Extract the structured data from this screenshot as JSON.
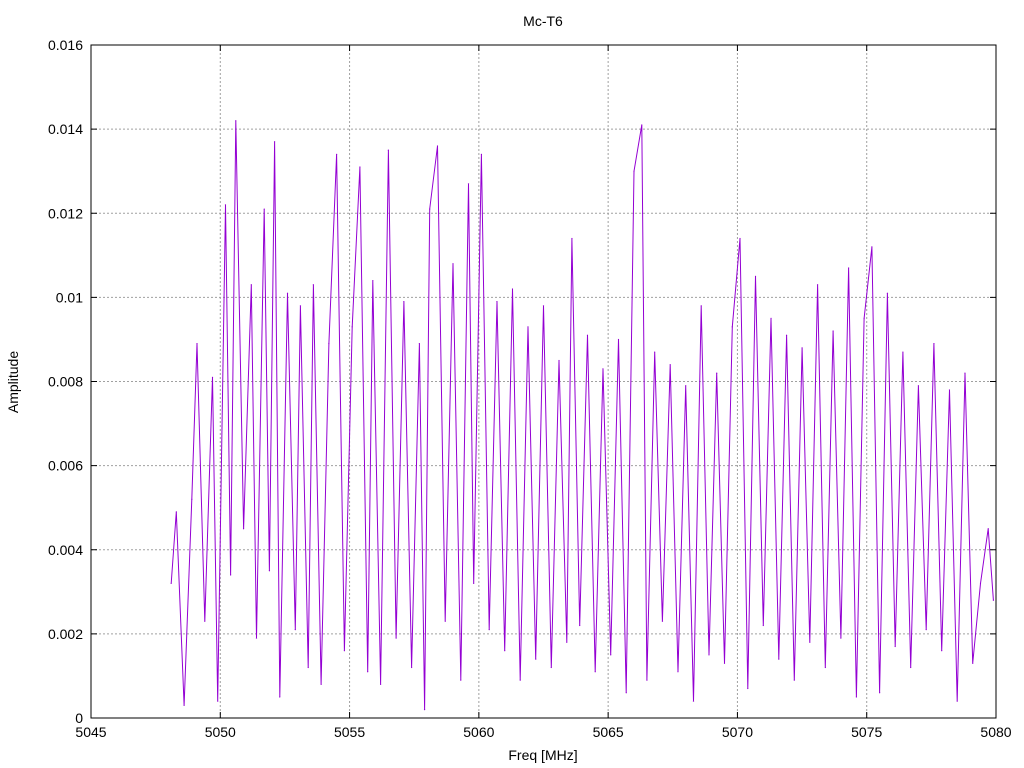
{
  "chart_data": {
    "type": "line",
    "title": "Mc-T6",
    "xlabel": "Freq [MHz]",
    "ylabel": "Amplitude",
    "xlim": [
      5045,
      5080
    ],
    "ylim": [
      0,
      0.016
    ],
    "x_ticks": [
      5045,
      5050,
      5055,
      5060,
      5065,
      5070,
      5075,
      5080
    ],
    "x_tick_labels": [
      "5045",
      "5050",
      "5055",
      "5060",
      "5065",
      "5070",
      "5075",
      "5080"
    ],
    "y_ticks": [
      0,
      0.002,
      0.004,
      0.006,
      0.008,
      0.01,
      0.012,
      0.014,
      0.016
    ],
    "y_tick_labels": [
      "0",
      "0.002",
      "0.004",
      "0.006",
      "0.008",
      "0.01",
      "0.012",
      "0.014",
      "0.016"
    ],
    "grid": true,
    "line_color": "#9400d3",
    "series": [
      {
        "x": [
          5048.1,
          5048.3,
          5048.6,
          5048.9,
          5049.1,
          5049.4,
          5049.7,
          5049.9,
          5050.2,
          5050.4,
          5050.6,
          5050.9,
          5051.2,
          5051.4,
          5051.7,
          5051.9,
          5052.1,
          5052.3,
          5052.6,
          5052.9,
          5053.1,
          5053.4,
          5053.6,
          5053.9,
          5054.2,
          5054.5,
          5054.8,
          5055.1,
          5055.4,
          5055.7,
          5055.9,
          5056.2,
          5056.5,
          5056.8,
          5057.1,
          5057.4,
          5057.7,
          5057.9,
          5058.1,
          5058.4,
          5058.7,
          5059.0,
          5059.3,
          5059.6,
          5059.8,
          5060.1,
          5060.4,
          5060.7,
          5061.0,
          5061.3,
          5061.6,
          5061.9,
          5062.2,
          5062.5,
          5062.8,
          5063.1,
          5063.4,
          5063.6,
          5063.9,
          5064.2,
          5064.5,
          5064.8,
          5065.1,
          5065.4,
          5065.7,
          5066.0,
          5066.3,
          5066.5,
          5066.8,
          5067.1,
          5067.4,
          5067.7,
          5068.0,
          5068.3,
          5068.6,
          5068.9,
          5069.2,
          5069.5,
          5069.8,
          5070.1,
          5070.4,
          5070.7,
          5071.0,
          5071.3,
          5071.6,
          5071.9,
          5072.2,
          5072.5,
          5072.8,
          5073.1,
          5073.4,
          5073.7,
          5074.0,
          5074.3,
          5074.6,
          5074.9,
          5075.2,
          5075.5,
          5075.8,
          5076.1,
          5076.4,
          5076.7,
          5077.0,
          5077.3,
          5077.6,
          5077.9,
          5078.2,
          5078.5,
          5078.8,
          5079.1,
          5079.4,
          5079.7,
          5079.9
        ],
        "y": [
          0.0032,
          0.0049,
          0.0003,
          0.0052,
          0.0089,
          0.0023,
          0.0081,
          0.0004,
          0.0122,
          0.0034,
          0.0142,
          0.0045,
          0.0103,
          0.0019,
          0.0121,
          0.0035,
          0.0137,
          0.0005,
          0.0101,
          0.0021,
          0.0098,
          0.0012,
          0.0103,
          0.0008,
          0.0089,
          0.0134,
          0.0016,
          0.0093,
          0.0131,
          0.0011,
          0.0104,
          0.0008,
          0.0135,
          0.0019,
          0.0099,
          0.0012,
          0.0089,
          0.0002,
          0.0121,
          0.0136,
          0.0023,
          0.0108,
          0.0009,
          0.0127,
          0.0032,
          0.0134,
          0.0021,
          0.0099,
          0.0016,
          0.0102,
          0.0009,
          0.0093,
          0.0014,
          0.0098,
          0.0012,
          0.0085,
          0.0018,
          0.0114,
          0.0022,
          0.0091,
          0.0011,
          0.0083,
          0.0015,
          0.009,
          0.0006,
          0.013,
          0.0141,
          0.0009,
          0.0087,
          0.0023,
          0.0084,
          0.0011,
          0.0079,
          0.0004,
          0.0098,
          0.0015,
          0.0082,
          0.0013,
          0.0093,
          0.0114,
          0.0007,
          0.0105,
          0.0022,
          0.0095,
          0.0014,
          0.0091,
          0.0009,
          0.0088,
          0.0018,
          0.0103,
          0.0012,
          0.0092,
          0.0019,
          0.0107,
          0.0005,
          0.0095,
          0.0112,
          0.0006,
          0.0101,
          0.0017,
          0.0087,
          0.0012,
          0.0079,
          0.0021,
          0.0089,
          0.0016,
          0.0078,
          0.0004,
          0.0082,
          0.0013,
          0.0032,
          0.0045,
          0.0028
        ]
      }
    ]
  }
}
